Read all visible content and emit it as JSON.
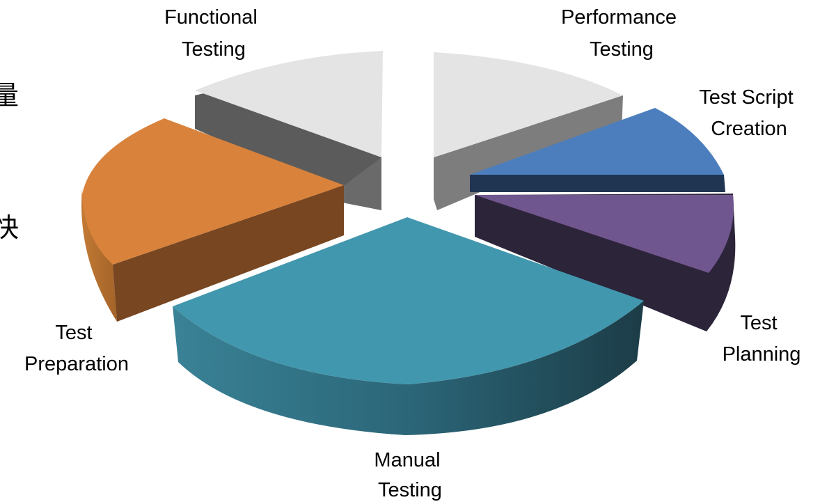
{
  "edge_text": [
    "量",
    "快"
  ],
  "chart_data": {
    "type": "pie",
    "style": "3d-exploded",
    "title": "",
    "legend": "none",
    "categories": [
      "Manual Testing",
      "Test Preparation",
      "Functional Testing",
      "Performance Testing",
      "Test Script Creation",
      "Test Planning"
    ],
    "values": [
      33,
      18,
      15,
      15,
      9,
      10
    ],
    "unit": "%",
    "colors": [
      "#4197ad",
      "#d9823a",
      "#e6e6e6",
      "#e6e6e6",
      "#4a7ebb",
      "#6f578d"
    ],
    "labels": [
      {
        "name": "manual",
        "lines": [
          "Manual",
          "Testing"
        ]
      },
      {
        "name": "test-preparation",
        "lines": [
          "Test",
          "Preparation"
        ]
      },
      {
        "name": "functional",
        "lines": [
          "Functional",
          "Testing"
        ]
      },
      {
        "name": "performance",
        "lines": [
          "Performance",
          "Testing"
        ]
      },
      {
        "name": "test-script-creation",
        "lines": [
          "Test Script",
          "Creation"
        ]
      },
      {
        "name": "test-planning",
        "lines": [
          "Test",
          "Planning"
        ]
      }
    ]
  }
}
